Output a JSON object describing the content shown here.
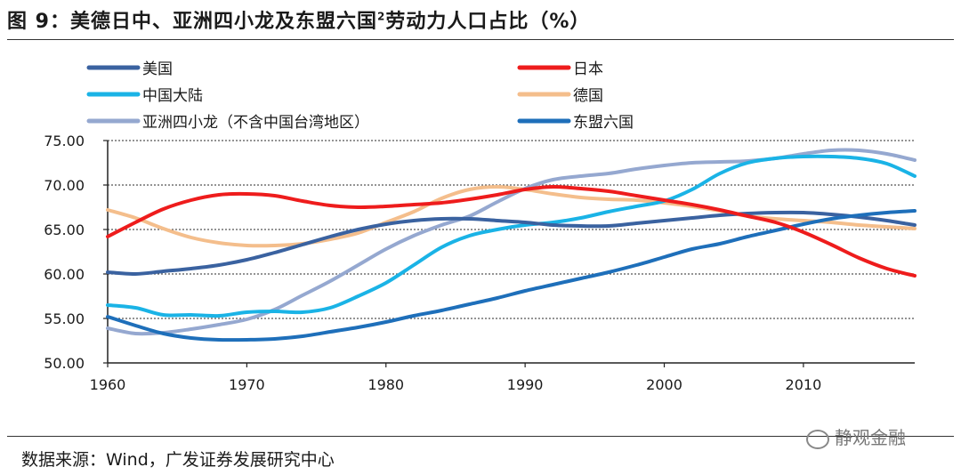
{
  "title": "图 9：美德日中、亚洲四小龙及东盟六国",
  "title_sup": "2",
  "title_tail": "劳动力人口占比（%）",
  "source": "数据来源：Wind，广发证券发展研究中心",
  "watermark": "静观金融",
  "chart_data": {
    "type": "line",
    "ylim": [
      50,
      75
    ],
    "xlim": [
      1960,
      2018
    ],
    "grid": true,
    "legend_position": "top",
    "y_ticks": [
      "50.00",
      "55.00",
      "60.00",
      "65.00",
      "70.00",
      "75.00"
    ],
    "x_ticks": [
      "1960",
      "1970",
      "1980",
      "1990",
      "2000",
      "2010"
    ],
    "x": [
      1960,
      1962,
      1964,
      1966,
      1968,
      1970,
      1972,
      1974,
      1976,
      1978,
      1980,
      1982,
      1984,
      1986,
      1988,
      1990,
      1992,
      1994,
      1996,
      1998,
      2000,
      2002,
      2004,
      2006,
      2008,
      2010,
      2012,
      2014,
      2016,
      2018
    ],
    "series": [
      {
        "name": "美国",
        "color": "#3a62a0",
        "values": [
          60.2,
          60.0,
          60.3,
          60.6,
          61.0,
          61.6,
          62.4,
          63.3,
          64.2,
          65.0,
          65.6,
          66.0,
          66.2,
          66.2,
          66.0,
          65.8,
          65.5,
          65.4,
          65.4,
          65.7,
          66.0,
          66.3,
          66.6,
          66.8,
          66.9,
          66.9,
          66.7,
          66.4,
          66.0,
          65.5
        ]
      },
      {
        "name": "日本",
        "color": "#ee1c1c",
        "values": [
          64.2,
          65.8,
          67.3,
          68.3,
          68.9,
          69.0,
          68.8,
          68.2,
          67.7,
          67.5,
          67.6,
          67.8,
          68.0,
          68.4,
          68.9,
          69.5,
          69.8,
          69.6,
          69.3,
          68.8,
          68.3,
          67.8,
          67.2,
          66.5,
          65.8,
          64.7,
          63.3,
          61.8,
          60.6,
          59.8
        ]
      },
      {
        "name": "中国大陆",
        "color": "#1ab3e6",
        "values": [
          56.5,
          56.2,
          55.4,
          55.4,
          55.3,
          55.7,
          55.8,
          55.7,
          56.2,
          57.5,
          59.0,
          61.0,
          63.0,
          64.3,
          65.0,
          65.5,
          65.8,
          66.3,
          67.0,
          67.6,
          68.2,
          69.5,
          71.3,
          72.5,
          73.0,
          73.2,
          73.2,
          73.0,
          72.4,
          71.0
        ]
      },
      {
        "name": "德国",
        "color": "#f4be8c",
        "values": [
          67.2,
          66.3,
          65.1,
          64.1,
          63.5,
          63.2,
          63.2,
          63.4,
          63.9,
          64.6,
          65.8,
          67.0,
          68.5,
          69.5,
          69.8,
          69.5,
          69.0,
          68.6,
          68.4,
          68.3,
          68.0,
          67.6,
          67.1,
          66.5,
          66.2,
          66.0,
          65.8,
          65.5,
          65.3,
          65.1
        ]
      },
      {
        "name": "亚洲四小龙（不含中国台湾地区）",
        "color": "#95a8d0",
        "values": [
          53.9,
          53.3,
          53.4,
          53.8,
          54.3,
          54.9,
          56.0,
          57.6,
          59.2,
          61.0,
          62.8,
          64.3,
          65.5,
          66.5,
          68.1,
          69.6,
          70.6,
          71.0,
          71.3,
          71.8,
          72.2,
          72.5,
          72.6,
          72.7,
          73.0,
          73.5,
          73.9,
          73.9,
          73.5,
          72.8
        ]
      },
      {
        "name": "东盟六国",
        "color": "#1e6fba",
        "values": [
          55.2,
          54.2,
          53.3,
          52.8,
          52.6,
          52.6,
          52.7,
          53.0,
          53.5,
          54.0,
          54.6,
          55.3,
          55.9,
          56.6,
          57.3,
          58.1,
          58.8,
          59.5,
          60.2,
          61.0,
          61.9,
          62.8,
          63.4,
          64.2,
          64.9,
          65.6,
          66.2,
          66.6,
          66.9,
          67.1
        ]
      }
    ]
  }
}
